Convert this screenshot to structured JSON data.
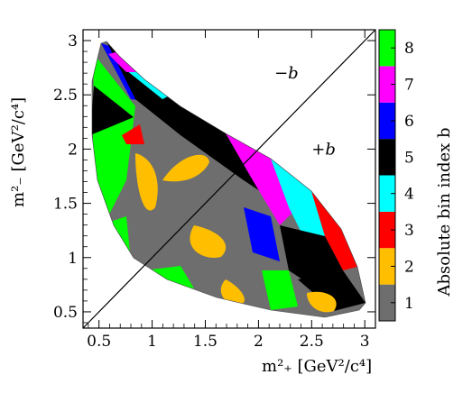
{
  "chart_data": {
    "type": "heatmap",
    "xlabel": "m²₊ [GeV²/c⁴]",
    "ylabel": "m²₋ [GeV²/c⁴]",
    "xlim": [
      0.35,
      3.1
    ],
    "ylim": [
      0.35,
      3.1
    ],
    "x_ticks": [
      "0.5",
      "1",
      "1.5",
      "2",
      "2.5",
      "3"
    ],
    "y_ticks": [
      "0.5",
      "1",
      "1.5",
      "2",
      "2.5",
      "3"
    ],
    "colorbar_title": "Absolute bin index b",
    "colorbar_labels": [
      "1",
      "2",
      "3",
      "4",
      "5",
      "6",
      "7",
      "8"
    ],
    "bin_colors": [
      "#6e6e6e",
      "#ffbf00",
      "#ff0000",
      "#00ffff",
      "#000000",
      "#0000ff",
      "#ff00ff",
      "#00ff00"
    ],
    "region_labels": [
      "−b",
      "+b"
    ],
    "diagonal_line": {
      "from": [
        0.35,
        0.35
      ],
      "to": [
        3.1,
        3.1
      ]
    }
  }
}
